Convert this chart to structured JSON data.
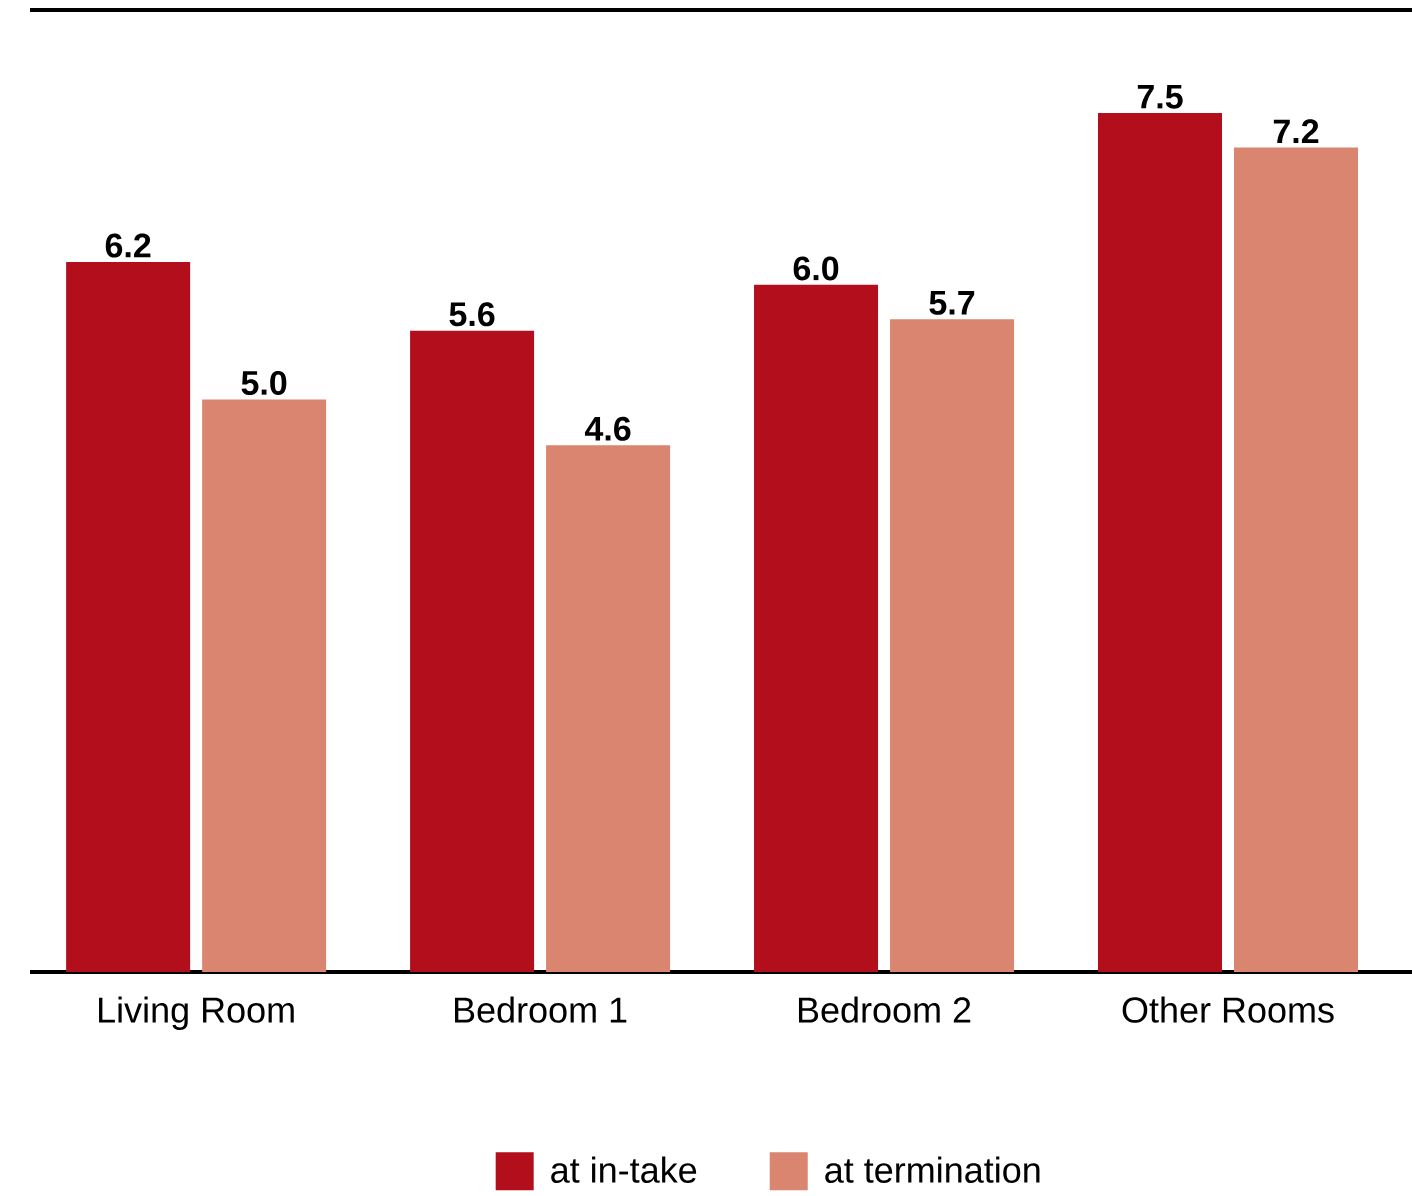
{
  "chart_data": {
    "type": "bar",
    "categories": [
      "Living Room",
      "Bedroom 1",
      "Bedroom 2",
      "Other Rooms"
    ],
    "series": [
      {
        "name": "at in-take",
        "color": "#b30e1c",
        "values": [
          6.2,
          5.6,
          6.0,
          7.5
        ],
        "value_labels": [
          "6.2",
          "5.6",
          "6.0",
          "7.5"
        ]
      },
      {
        "name": "at termination",
        "color": "#d9856f",
        "values": [
          5.0,
          4.6,
          5.7,
          7.2
        ],
        "value_labels": [
          "5.0",
          "4.6",
          "5.7",
          "7.2"
        ]
      }
    ],
    "ylim": [
      0,
      8.4
    ],
    "tick_labels": "x",
    "legend": "bottom",
    "grid": false
  }
}
